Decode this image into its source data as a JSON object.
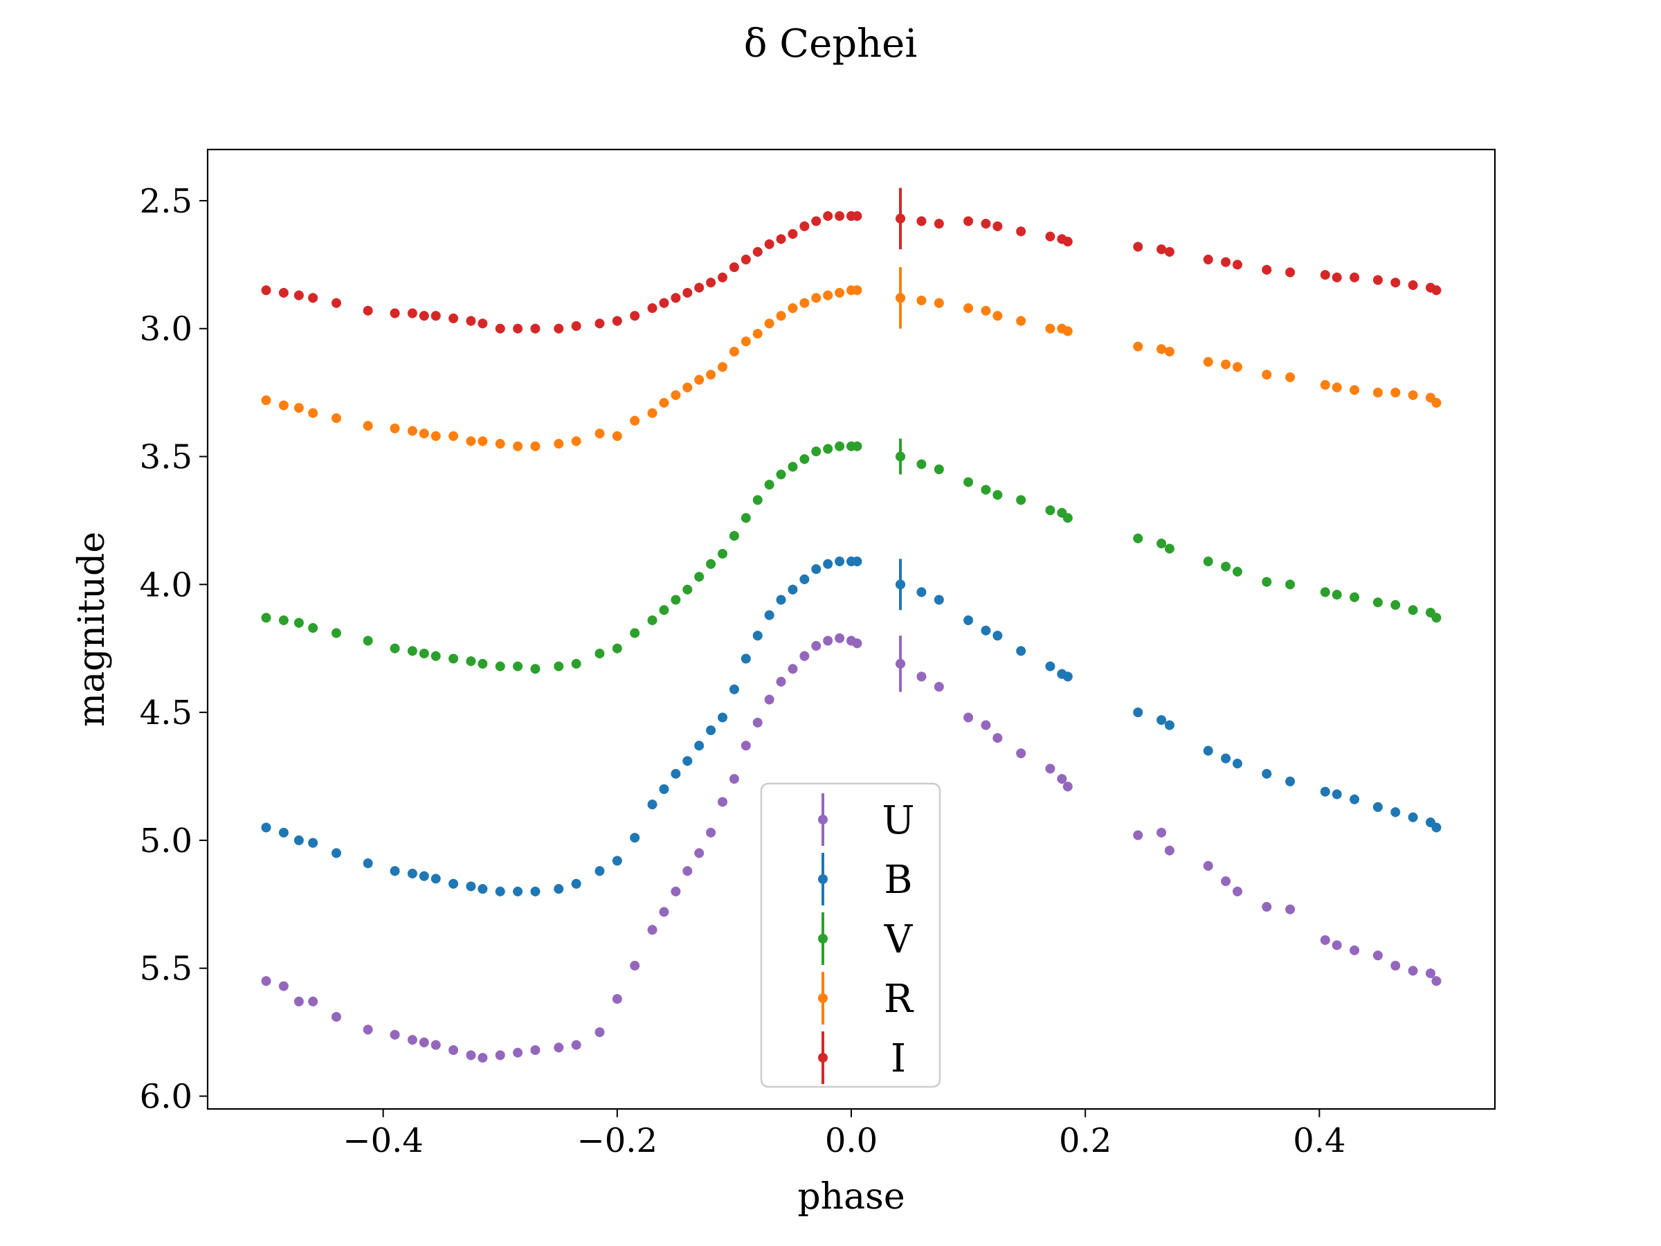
{
  "chart_data": {
    "type": "scatter",
    "title": "δ Cephei",
    "xlabel": "phase",
    "ylabel": "magnitude",
    "xlim": [
      -0.55,
      0.55
    ],
    "ylim": [
      6.05,
      2.3
    ],
    "y_inverted": true,
    "x_ticks": [
      -0.4,
      -0.2,
      0.0,
      0.2,
      0.4
    ],
    "x_tick_labels": [
      "−0.4",
      "−0.2",
      "0.0",
      "0.2",
      "0.4"
    ],
    "y_ticks": [
      2.5,
      3.0,
      3.5,
      4.0,
      4.5,
      5.0,
      5.5,
      6.0
    ],
    "y_tick_labels": [
      "2.5",
      "3.0",
      "3.5",
      "4.0",
      "4.5",
      "5.0",
      "5.5",
      "6.0"
    ],
    "grid": false,
    "legend_placement": "lower-center",
    "legend_order": [
      "U",
      "B",
      "V",
      "R",
      "I"
    ],
    "highlight_point": {
      "phase": 0.042,
      "error": {
        "U": 0.11,
        "B": 0.1,
        "V": 0.07,
        "R": 0.12,
        "I": 0.12
      }
    },
    "phases": [
      -0.5,
      -0.485,
      -0.472,
      -0.46,
      -0.44,
      -0.413,
      -0.39,
      -0.375,
      -0.365,
      -0.355,
      -0.34,
      -0.325,
      -0.315,
      -0.3,
      -0.285,
      -0.27,
      -0.25,
      -0.235,
      -0.215,
      -0.2,
      -0.185,
      -0.17,
      -0.16,
      -0.15,
      -0.14,
      -0.13,
      -0.12,
      -0.11,
      -0.1,
      -0.09,
      -0.08,
      -0.07,
      -0.06,
      -0.05,
      -0.04,
      -0.03,
      -0.02,
      -0.01,
      0.0,
      0.005,
      0.042,
      0.06,
      0.075,
      0.1,
      0.115,
      0.125,
      0.145,
      0.17,
      0.18,
      0.185,
      0.245,
      0.265,
      0.272,
      0.305,
      0.32,
      0.33,
      0.355,
      0.375,
      0.405,
      0.415,
      0.43,
      0.45,
      0.465,
      0.48,
      0.495,
      0.5
    ],
    "series": [
      {
        "name": "U",
        "color": "#9467bd",
        "values": [
          5.55,
          5.57,
          5.63,
          5.63,
          5.69,
          5.74,
          5.76,
          5.78,
          5.79,
          5.8,
          5.82,
          5.84,
          5.85,
          5.84,
          5.83,
          5.82,
          5.81,
          5.8,
          5.75,
          5.62,
          5.49,
          5.35,
          5.28,
          5.2,
          5.12,
          5.05,
          4.97,
          4.85,
          4.76,
          4.63,
          4.54,
          4.45,
          4.38,
          4.33,
          4.28,
          4.24,
          4.22,
          4.21,
          4.22,
          4.23,
          4.31,
          4.36,
          4.4,
          4.52,
          4.55,
          4.6,
          4.66,
          4.72,
          4.76,
          4.79,
          4.98,
          4.97,
          5.04,
          5.1,
          5.16,
          5.2,
          5.26,
          5.27,
          5.39,
          5.41,
          5.43,
          5.45,
          5.49,
          5.51,
          5.52,
          5.55
        ]
      },
      {
        "name": "B",
        "color": "#1f77b4",
        "values": [
          4.95,
          4.97,
          5.0,
          5.01,
          5.05,
          5.09,
          5.12,
          5.13,
          5.14,
          5.15,
          5.17,
          5.18,
          5.19,
          5.2,
          5.2,
          5.2,
          5.19,
          5.17,
          5.12,
          5.08,
          4.99,
          4.86,
          4.8,
          4.74,
          4.69,
          4.63,
          4.57,
          4.52,
          4.41,
          4.29,
          4.2,
          4.12,
          4.06,
          4.02,
          3.98,
          3.94,
          3.92,
          3.91,
          3.91,
          3.91,
          4.0,
          4.03,
          4.06,
          4.14,
          4.18,
          4.2,
          4.26,
          4.32,
          4.35,
          4.36,
          4.5,
          4.53,
          4.55,
          4.65,
          4.68,
          4.7,
          4.74,
          4.77,
          4.81,
          4.82,
          4.84,
          4.87,
          4.89,
          4.91,
          4.93,
          4.95
        ]
      },
      {
        "name": "V",
        "color": "#2ca02c",
        "values": [
          4.13,
          4.14,
          4.15,
          4.17,
          4.19,
          4.22,
          4.25,
          4.26,
          4.27,
          4.28,
          4.29,
          4.3,
          4.31,
          4.32,
          4.32,
          4.33,
          4.32,
          4.31,
          4.27,
          4.25,
          4.19,
          4.14,
          4.1,
          4.06,
          4.02,
          3.97,
          3.92,
          3.88,
          3.81,
          3.74,
          3.67,
          3.61,
          3.57,
          3.54,
          3.51,
          3.48,
          3.47,
          3.46,
          3.46,
          3.46,
          3.5,
          3.53,
          3.55,
          3.6,
          3.63,
          3.65,
          3.67,
          3.71,
          3.72,
          3.74,
          3.82,
          3.84,
          3.86,
          3.91,
          3.93,
          3.95,
          3.99,
          4.0,
          4.03,
          4.04,
          4.05,
          4.07,
          4.08,
          4.1,
          4.11,
          4.13
        ]
      },
      {
        "name": "R",
        "color": "#ff7f0e",
        "values": [
          3.28,
          3.3,
          3.31,
          3.33,
          3.35,
          3.38,
          3.39,
          3.4,
          3.41,
          3.42,
          3.42,
          3.44,
          3.44,
          3.45,
          3.46,
          3.46,
          3.45,
          3.44,
          3.41,
          3.42,
          3.36,
          3.33,
          3.29,
          3.26,
          3.23,
          3.2,
          3.18,
          3.15,
          3.09,
          3.05,
          3.02,
          2.98,
          2.95,
          2.92,
          2.9,
          2.88,
          2.87,
          2.86,
          2.85,
          2.85,
          2.88,
          2.89,
          2.9,
          2.92,
          2.93,
          2.95,
          2.97,
          3.0,
          3.0,
          3.01,
          3.07,
          3.08,
          3.09,
          3.13,
          3.14,
          3.15,
          3.18,
          3.19,
          3.22,
          3.23,
          3.24,
          3.25,
          3.25,
          3.26,
          3.27,
          3.29
        ]
      },
      {
        "name": "I",
        "color": "#d62728",
        "values": [
          2.85,
          2.86,
          2.87,
          2.88,
          2.9,
          2.93,
          2.94,
          2.94,
          2.95,
          2.95,
          2.96,
          2.97,
          2.98,
          3.0,
          3.0,
          3.0,
          3.0,
          2.99,
          2.98,
          2.97,
          2.95,
          2.92,
          2.9,
          2.88,
          2.86,
          2.84,
          2.82,
          2.8,
          2.76,
          2.73,
          2.7,
          2.67,
          2.65,
          2.63,
          2.6,
          2.58,
          2.56,
          2.56,
          2.56,
          2.56,
          2.57,
          2.58,
          2.59,
          2.58,
          2.59,
          2.6,
          2.62,
          2.64,
          2.65,
          2.66,
          2.68,
          2.69,
          2.7,
          2.73,
          2.74,
          2.75,
          2.77,
          2.78,
          2.79,
          2.8,
          2.8,
          2.81,
          2.82,
          2.83,
          2.84,
          2.85
        ]
      }
    ]
  }
}
